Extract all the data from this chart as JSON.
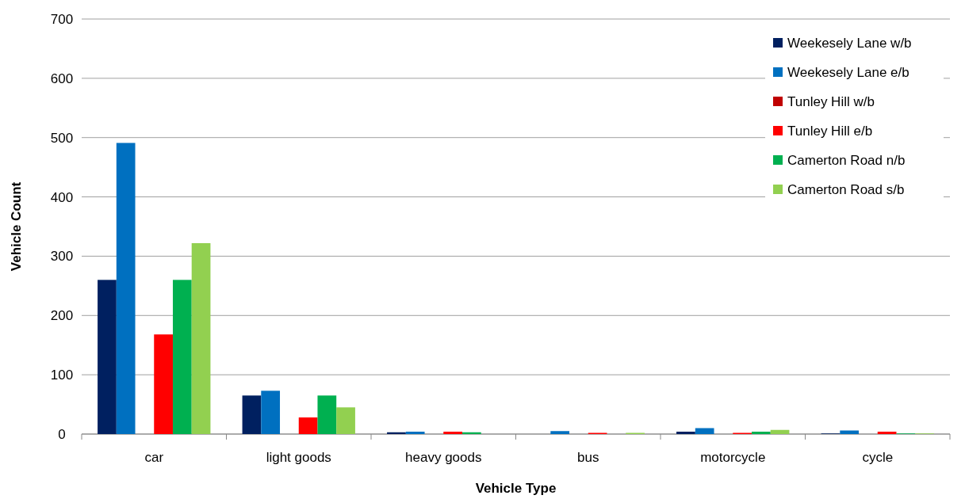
{
  "chart_data": {
    "type": "bar",
    "xlabel": "Vehicle Type",
    "ylabel": "Vehicle Count",
    "categories": [
      "car",
      "light goods",
      "heavy goods",
      "bus",
      "motorcycle",
      "cycle"
    ],
    "series": [
      {
        "name": "Weekesely Lane w/b",
        "color": "#002060",
        "values": [
          260,
          65,
          3,
          0,
          4,
          1
        ]
      },
      {
        "name": "Weekesely Lane e/b",
        "color": "#0070c0",
        "values": [
          491,
          73,
          4,
          5,
          10,
          6
        ]
      },
      {
        "name": "Tunley Hill w/b",
        "color": "#c00000",
        "values": [
          0,
          0,
          0,
          0,
          0,
          0
        ]
      },
      {
        "name": "Tunley Hill e/b",
        "color": "#ff0000",
        "values": [
          168,
          28,
          4,
          2,
          2,
          4
        ]
      },
      {
        "name": "Camerton Road n/b",
        "color": "#00b050",
        "values": [
          260,
          65,
          3,
          0,
          4,
          1
        ]
      },
      {
        "name": "Camerton Road s/b",
        "color": "#92d050",
        "values": [
          322,
          45,
          0,
          2,
          7,
          1
        ]
      }
    ],
    "ylim": [
      0,
      700
    ],
    "yticks": [
      0,
      100,
      200,
      300,
      400,
      500,
      600,
      700
    ],
    "grid": "y",
    "legend": "top right"
  }
}
